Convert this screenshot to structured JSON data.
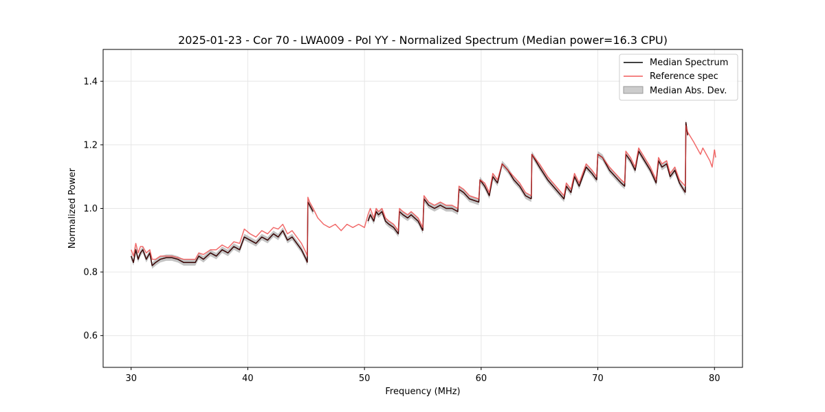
{
  "chart_data": {
    "type": "line",
    "title": "2025-01-23 - Cor 70 - LWA009 - Pol YY - Normalized Spectrum (Median power=16.3 CPU)",
    "xlabel": "Frequency (MHz)",
    "ylabel": "Normalized Power",
    "xlim": [
      27.6,
      82.4
    ],
    "ylim": [
      0.5,
      1.5
    ],
    "xticks": [
      30,
      40,
      50,
      60,
      70,
      80
    ],
    "yticks": [
      0.6,
      0.8,
      1.0,
      1.2,
      1.4
    ],
    "xtick_labels": [
      "30",
      "40",
      "50",
      "60",
      "70",
      "80"
    ],
    "ytick_labels": [
      "0.6",
      "0.8",
      "1.0",
      "1.2",
      "1.4"
    ],
    "grid": true,
    "legend_position": "top-right",
    "colors": {
      "median": "#000000",
      "reference": "#f05a5a",
      "overlap": "#8b0000",
      "mad_fill": "#b0b0b0",
      "grid": "#e6e6e6"
    },
    "series": [
      {
        "name": "Median Spectrum",
        "segments": [
          {
            "x": [
              30.0,
              30.2,
              30.4,
              30.6,
              30.8,
              31.0,
              31.3,
              31.6,
              31.8,
              32.1,
              32.5,
              33.0,
              33.5,
              34.0,
              34.5,
              35.0,
              35.5,
              35.8,
              36.2,
              36.8,
              37.3,
              37.8,
              38.3,
              38.8,
              39.3,
              39.7,
              40.2,
              40.7,
              41.2,
              41.7,
              42.2,
              42.6,
              43.0,
              43.4,
              43.8,
              44.2,
              44.6,
              45.0,
              45.1
            ],
            "y": [
              0.85,
              0.83,
              0.87,
              0.84,
              0.86,
              0.87,
              0.84,
              0.86,
              0.82,
              0.83,
              0.84,
              0.845,
              0.845,
              0.84,
              0.83,
              0.83,
              0.83,
              0.85,
              0.84,
              0.86,
              0.85,
              0.87,
              0.86,
              0.88,
              0.87,
              0.91,
              0.9,
              0.89,
              0.91,
              0.9,
              0.92,
              0.91,
              0.93,
              0.9,
              0.91,
              0.89,
              0.87,
              0.84,
              0.83
            ]
          },
          {
            "x": [
              45.1,
              45.15,
              45.3,
              45.6
            ],
            "y": [
              0.83,
              1.02,
              1.01,
              0.99
            ]
          },
          {
            "x": [
              50.3,
              50.5,
              50.8,
              51.0,
              51.2,
              51.5,
              51.8,
              52.1,
              52.5,
              52.9,
              53.0,
              53.3,
              53.7,
              54.0,
              54.6,
              55.0
            ],
            "y": [
              0.96,
              0.98,
              0.96,
              0.99,
              0.98,
              0.99,
              0.96,
              0.95,
              0.94,
              0.92,
              0.99,
              0.98,
              0.97,
              0.98,
              0.96,
              0.93
            ]
          },
          {
            "x": [
              55.0,
              55.1,
              55.5,
              56.0,
              56.5,
              57.0,
              57.5,
              58.0,
              58.1,
              58.5,
              59.0,
              59.8,
              59.9,
              60.3,
              60.7,
              61.0,
              61.4,
              61.8,
              62.3,
              62.8,
              63.3,
              63.8,
              64.3
            ],
            "y": [
              0.93,
              1.03,
              1.01,
              1.0,
              1.01,
              1.0,
              1.0,
              0.99,
              1.06,
              1.05,
              1.03,
              1.02,
              1.09,
              1.07,
              1.04,
              1.1,
              1.08,
              1.14,
              1.12,
              1.09,
              1.07,
              1.04,
              1.03
            ]
          },
          {
            "x": [
              64.3,
              64.35,
              65.0,
              65.7,
              66.4,
              67.1,
              67.3,
              67.7,
              68.0,
              68.4,
              69.0,
              69.5,
              69.9,
              70.0,
              70.4,
              71.0,
              71.5,
              72.0,
              72.3,
              72.4,
              72.8,
              73.2,
              73.5,
              74.0,
              74.5,
              75.0,
              75.2,
              75.5,
              75.9,
              76.2,
              76.6,
              77.0,
              77.5
            ],
            "y": [
              1.03,
              1.17,
              1.13,
              1.09,
              1.06,
              1.03,
              1.07,
              1.05,
              1.1,
              1.07,
              1.13,
              1.11,
              1.09,
              1.17,
              1.16,
              1.12,
              1.1,
              1.08,
              1.07,
              1.17,
              1.15,
              1.12,
              1.18,
              1.15,
              1.12,
              1.08,
              1.15,
              1.13,
              1.14,
              1.1,
              1.12,
              1.08,
              1.05
            ]
          },
          {
            "x": [
              77.5,
              77.55,
              77.7
            ],
            "y": [
              1.05,
              1.27,
              1.23
            ]
          }
        ]
      },
      {
        "name": "Reference spec",
        "segments": [
          {
            "x": [
              30.0,
              30.2,
              30.4,
              30.6,
              30.8,
              31.0,
              31.3,
              31.6,
              31.8,
              32.1,
              32.5,
              33.0,
              33.5,
              34.0,
              34.5,
              35.0,
              35.5,
              35.8,
              36.2,
              36.8,
              37.3,
              37.8,
              38.3,
              38.8,
              39.3,
              39.7,
              40.2,
              40.7,
              41.2,
              41.7,
              42.2,
              42.6,
              43.0,
              43.4,
              43.8,
              44.2,
              44.6,
              45.0,
              45.1,
              45.15,
              45.3,
              45.6,
              46.0,
              46.5,
              47.0,
              47.5,
              48.0,
              48.5,
              49.0,
              49.5,
              50.0,
              50.3,
              50.5,
              50.8,
              51.0,
              51.2,
              51.5,
              51.8,
              52.1,
              52.5,
              52.9,
              53.0,
              53.3,
              53.7,
              54.0,
              54.6,
              55.0,
              55.1,
              55.5,
              56.0,
              56.5,
              57.0,
              57.5,
              58.0,
              58.1,
              58.5,
              59.0,
              59.8,
              59.9,
              60.3,
              60.7,
              61.0,
              61.4,
              61.8,
              62.3,
              62.8,
              63.3,
              63.8,
              64.3,
              64.35,
              65.0,
              65.7,
              66.4,
              67.1,
              67.3,
              67.7,
              68.0,
              68.4,
              69.0,
              69.5,
              69.9,
              70.0,
              70.4,
              71.0,
              71.5,
              72.0,
              72.3,
              72.4,
              72.8,
              73.2,
              73.5,
              74.0,
              74.5,
              75.0,
              75.2,
              75.5,
              75.9,
              76.2,
              76.6,
              77.0,
              77.5,
              77.55,
              77.7,
              78.2,
              78.8,
              79.0,
              79.3,
              79.6,
              79.8,
              80.0
            ],
            "y": [
              0.87,
              0.85,
              0.89,
              0.86,
              0.88,
              0.88,
              0.86,
              0.87,
              0.84,
              0.84,
              0.85,
              0.85,
              0.85,
              0.845,
              0.84,
              0.84,
              0.84,
              0.86,
              0.855,
              0.87,
              0.87,
              0.885,
              0.875,
              0.895,
              0.89,
              0.935,
              0.92,
              0.91,
              0.93,
              0.92,
              0.94,
              0.935,
              0.95,
              0.92,
              0.93,
              0.91,
              0.89,
              0.86,
              0.85,
              1.035,
              1.02,
              1.0,
              0.97,
              0.95,
              0.94,
              0.95,
              0.93,
              0.95,
              0.94,
              0.95,
              0.94,
              0.98,
              1.0,
              0.97,
              1.0,
              0.99,
              1.0,
              0.97,
              0.96,
              0.95,
              0.93,
              1.0,
              0.99,
              0.98,
              0.99,
              0.97,
              0.94,
              1.04,
              1.02,
              1.01,
              1.02,
              1.01,
              1.01,
              1.0,
              1.07,
              1.06,
              1.04,
              1.03,
              1.09,
              1.08,
              1.05,
              1.11,
              1.09,
              1.14,
              1.12,
              1.1,
              1.08,
              1.05,
              1.04,
              1.17,
              1.14,
              1.1,
              1.07,
              1.04,
              1.08,
              1.06,
              1.11,
              1.08,
              1.14,
              1.12,
              1.1,
              1.17,
              1.16,
              1.13,
              1.11,
              1.09,
              1.08,
              1.18,
              1.16,
              1.13,
              1.19,
              1.16,
              1.13,
              1.09,
              1.16,
              1.14,
              1.15,
              1.11,
              1.13,
              1.09,
              1.07,
              1.26,
              1.24,
              1.21,
              1.17,
              1.19,
              1.17,
              1.15,
              1.13,
              1.185
            ]
          },
          {
            "x": [
              80.0,
              80.1
            ],
            "y": [
              1.185,
              1.16
            ]
          }
        ]
      },
      {
        "name": "Median Abs. Dev.",
        "kind": "band",
        "half_width": 0.01
      }
    ]
  }
}
